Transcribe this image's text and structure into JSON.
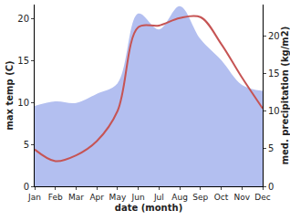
{
  "chart_data": {
    "type": "line",
    "categories": [
      "Jan",
      "Feb",
      "Mar",
      "Apr",
      "May",
      "Jun",
      "Jul",
      "Aug",
      "Sep",
      "Oct",
      "Nov",
      "Dec"
    ],
    "x_label": "date (month)",
    "y_label": "max temp (C)",
    "y2_label": "med. precipitation (kg/m2)",
    "ylim": [
      0,
      21.7
    ],
    "yticks": [
      0,
      5,
      10,
      15,
      20
    ],
    "y2lim": [
      0,
      24.2
    ],
    "y2ticks": [
      0,
      5,
      10,
      15,
      20
    ],
    "grid": false,
    "series": [
      {
        "type": "area",
        "axis": "y2",
        "color": "#b3bff0",
        "values": [
          10.7,
          11.3,
          11.1,
          12.3,
          13.7,
          23.0,
          20.9,
          24.0,
          19.6,
          16.8,
          13.5,
          12.7
        ]
      },
      {
        "type": "line",
        "axis": "y",
        "color": "#c65454",
        "values": [
          4.4,
          3.0,
          3.7,
          5.4,
          9.0,
          19.0,
          19.2,
          20.1,
          20.2,
          17.0,
          13.0,
          9.3
        ]
      }
    ]
  }
}
